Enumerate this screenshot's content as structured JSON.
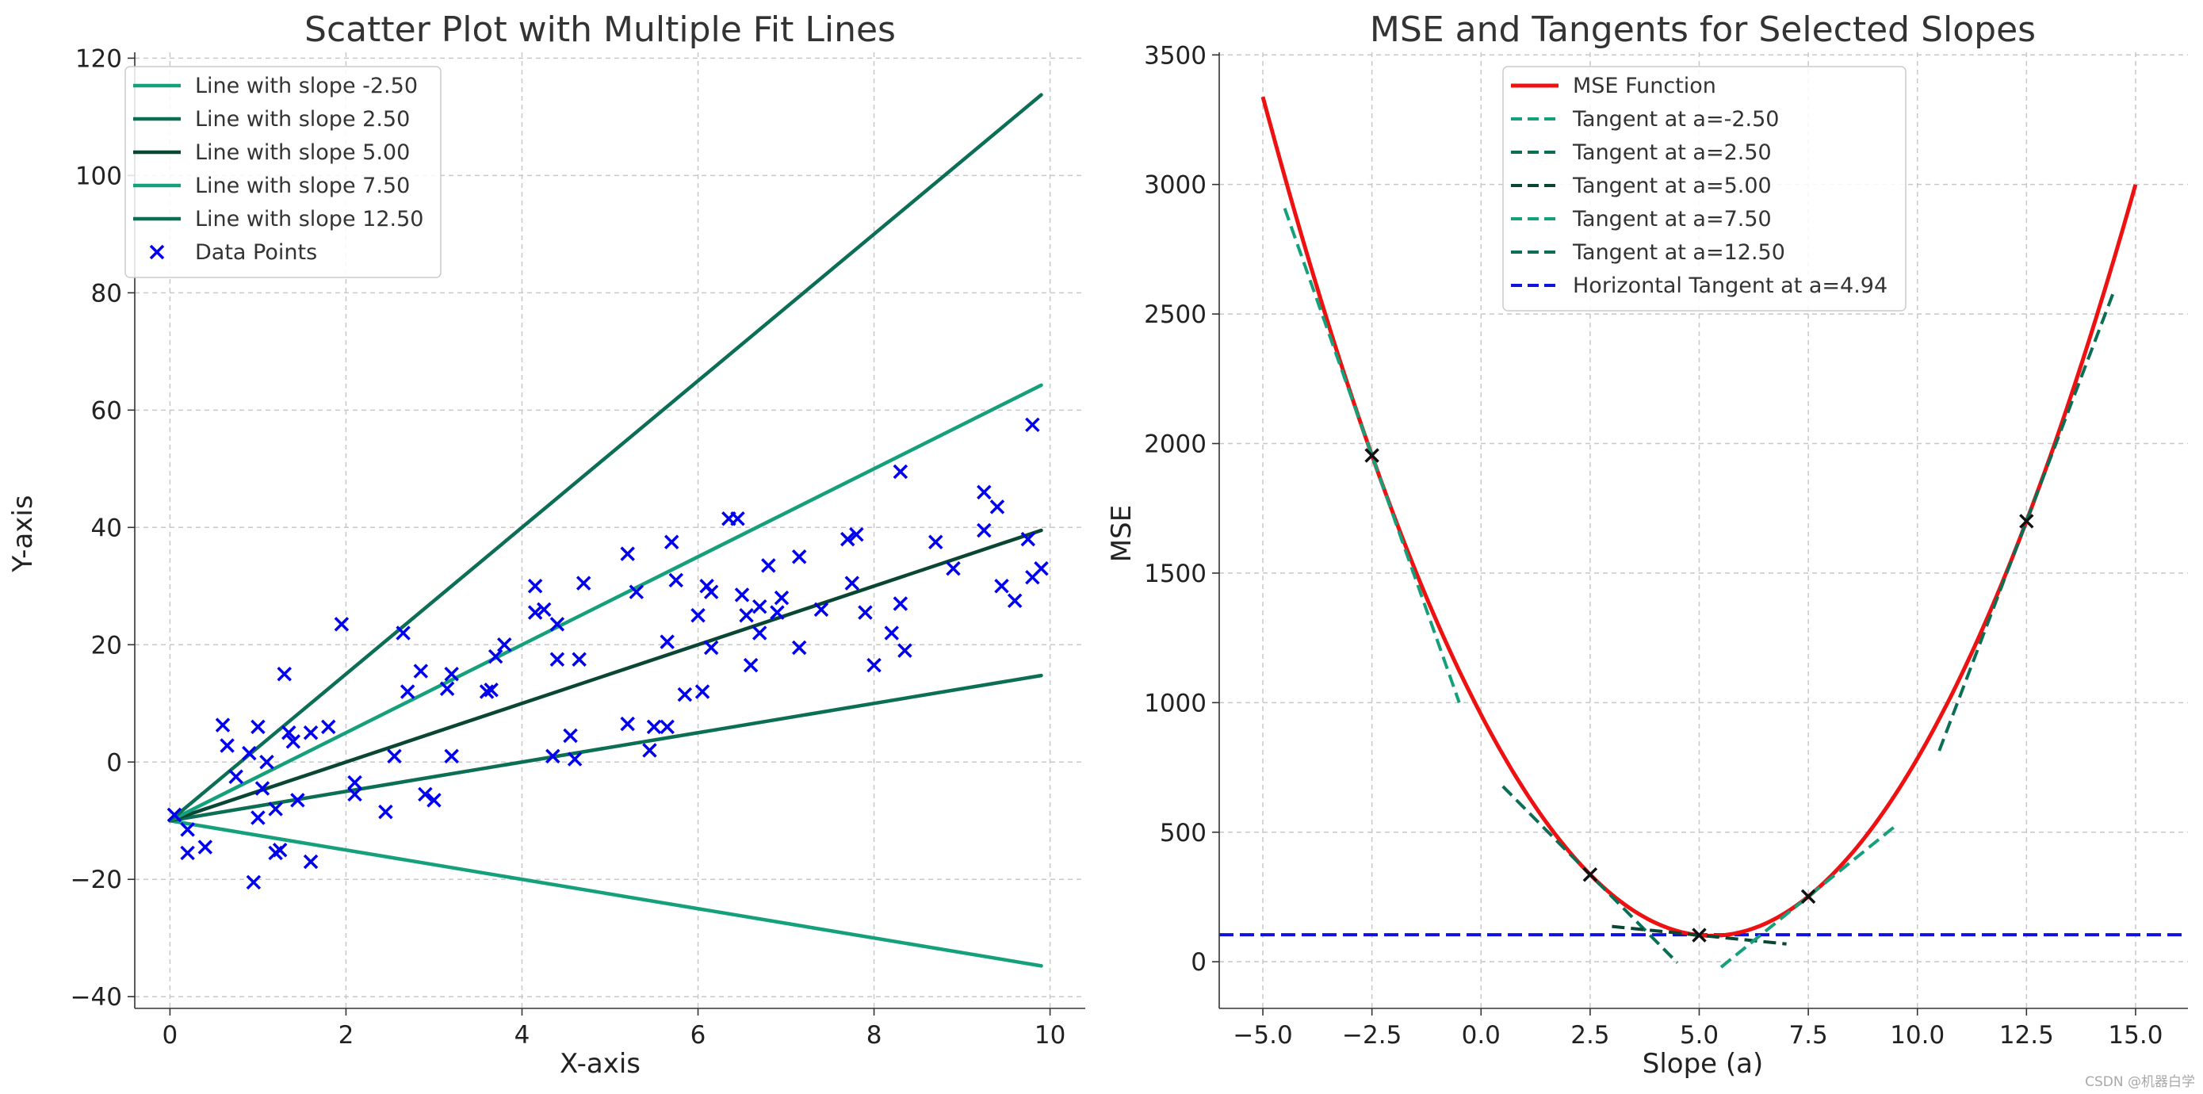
{
  "watermark": "CSDN @机器白学",
  "colors": {
    "teal": "#14a07a",
    "dark_teal": "#0b6e55",
    "darkest_teal": "#0a4634",
    "mse": "#ee1111",
    "horizontal": "#1111dd",
    "points": "#0000ee"
  },
  "chart_data": [
    {
      "type": "scatter",
      "title": "Scatter Plot with Multiple Fit Lines",
      "xlabel": "X-axis",
      "ylabel": "Y-axis",
      "xlim": [
        -0.4,
        10.4
      ],
      "ylim": [
        -42,
        121
      ],
      "xticks": [
        0,
        2,
        4,
        6,
        8,
        10
      ],
      "yticks": [
        -40,
        -20,
        0,
        20,
        40,
        60,
        80,
        100,
        120
      ],
      "grid": true,
      "legend_position": "top-left",
      "intercept": -10,
      "fit_lines": [
        {
          "name": "Line with slope -2.50",
          "slope": -2.5,
          "color": "#14a07a"
        },
        {
          "name": "Line with slope 2.50",
          "slope": 2.5,
          "color": "#0b6e55"
        },
        {
          "name": "Line with slope 5.00",
          "slope": 5.0,
          "color": "#0a4634"
        },
        {
          "name": "Line with slope 7.50",
          "slope": 7.5,
          "color": "#14a07a"
        },
        {
          "name": "Line with slope 12.50",
          "slope": 12.5,
          "color": "#0b6e55"
        }
      ],
      "points_name": "Data Points",
      "points": [
        [
          0.05,
          -9
        ],
        [
          0.2,
          -11.5
        ],
        [
          0.2,
          -15.5
        ],
        [
          0.4,
          -14.5
        ],
        [
          0.6,
          6.3
        ],
        [
          0.65,
          2.8
        ],
        [
          0.75,
          -2.5
        ],
        [
          0.9,
          1.5
        ],
        [
          0.95,
          -20.5
        ],
        [
          1.0,
          6
        ],
        [
          1.0,
          -9.5
        ],
        [
          1.05,
          -4.5
        ],
        [
          1.1,
          0
        ],
        [
          1.2,
          -8
        ],
        [
          1.2,
          -15.5
        ],
        [
          1.25,
          -15
        ],
        [
          1.3,
          15
        ],
        [
          1.35,
          5
        ],
        [
          1.4,
          3.5
        ],
        [
          1.45,
          -6.5
        ],
        [
          1.6,
          5
        ],
        [
          1.6,
          -17
        ],
        [
          1.8,
          6
        ],
        [
          1.95,
          23.5
        ],
        [
          2.1,
          -5.5
        ],
        [
          2.1,
          -3.5
        ],
        [
          2.45,
          -8.5
        ],
        [
          2.55,
          1
        ],
        [
          2.65,
          22
        ],
        [
          2.7,
          12
        ],
        [
          2.85,
          15.5
        ],
        [
          2.9,
          -5.5
        ],
        [
          3.0,
          -6.5
        ],
        [
          3.15,
          12.5
        ],
        [
          3.2,
          15
        ],
        [
          3.2,
          1
        ],
        [
          3.6,
          12
        ],
        [
          3.65,
          12.3
        ],
        [
          3.7,
          18
        ],
        [
          3.8,
          20
        ],
        [
          4.15,
          30
        ],
        [
          4.15,
          25.5
        ],
        [
          4.25,
          26
        ],
        [
          4.35,
          1
        ],
        [
          4.4,
          17.5
        ],
        [
          4.4,
          23.5
        ],
        [
          4.55,
          4.5
        ],
        [
          4.6,
          0.5
        ],
        [
          4.65,
          17.5
        ],
        [
          4.7,
          30.5
        ],
        [
          5.2,
          35.5
        ],
        [
          5.2,
          6.5
        ],
        [
          5.3,
          29
        ],
        [
          5.45,
          2
        ],
        [
          5.5,
          6
        ],
        [
          5.65,
          20.5
        ],
        [
          5.65,
          6
        ],
        [
          5.7,
          37.5
        ],
        [
          5.75,
          31
        ],
        [
          5.85,
          11.5
        ],
        [
          6.0,
          25
        ],
        [
          6.05,
          12
        ],
        [
          6.1,
          30
        ],
        [
          6.15,
          19.5
        ],
        [
          6.15,
          29
        ],
        [
          6.35,
          41.5
        ],
        [
          6.45,
          41.5
        ],
        [
          6.5,
          28.5
        ],
        [
          6.55,
          25
        ],
        [
          6.6,
          16.5
        ],
        [
          6.7,
          26.5
        ],
        [
          6.7,
          22
        ],
        [
          6.8,
          33.5
        ],
        [
          6.9,
          25.5
        ],
        [
          6.95,
          28
        ],
        [
          7.15,
          35
        ],
        [
          7.15,
          19.5
        ],
        [
          7.4,
          26
        ],
        [
          7.7,
          38
        ],
        [
          7.75,
          30.5
        ],
        [
          7.8,
          38.8
        ],
        [
          7.9,
          25.5
        ],
        [
          8.0,
          16.5
        ],
        [
          8.2,
          22
        ],
        [
          8.3,
          49.5
        ],
        [
          8.3,
          27
        ],
        [
          8.35,
          19
        ],
        [
          8.7,
          37.5
        ],
        [
          8.9,
          33
        ],
        [
          9.25,
          46
        ],
        [
          9.25,
          39.5
        ],
        [
          9.4,
          43.5
        ],
        [
          9.45,
          30
        ],
        [
          9.6,
          27.5
        ],
        [
          9.75,
          38
        ],
        [
          9.8,
          31.5
        ],
        [
          9.8,
          57.5
        ],
        [
          9.9,
          33
        ]
      ]
    },
    {
      "type": "line",
      "title": "MSE and Tangents for Selected Slopes",
      "xlabel": "Slope (a)",
      "ylabel": "MSE",
      "xlim": [
        -6,
        16.2
      ],
      "ylim": [
        -180,
        3510
      ],
      "xticks": [
        -5.0,
        -2.5,
        0.0,
        2.5,
        5.0,
        7.5,
        10.0,
        12.5,
        15.0
      ],
      "xtick_labels": [
        "−5.0",
        "−2.5",
        "0.0",
        "2.5",
        "5.0",
        "7.5",
        "10.0",
        "12.5",
        "15.0"
      ],
      "yticks": [
        0,
        500,
        1000,
        1500,
        2000,
        2500,
        3000,
        3500
      ],
      "grid": true,
      "legend_position": "top-center",
      "mse_curve": {
        "name": "MSE Function",
        "x_range": [
          -5,
          15
        ],
        "sampled_points": [
          [
            -5,
            3340
          ],
          [
            -2.5,
            1950
          ],
          [
            2.5,
            340
          ],
          [
            4.94,
            104
          ],
          [
            7.5,
            250
          ],
          [
            12.5,
            1700
          ],
          [
            15,
            3000
          ]
        ]
      },
      "tangents": [
        {
          "name": "Tangent at a=-2.50",
          "a": -2.5,
          "mse": 1950,
          "x_range": [
            -4.5,
            -0.5
          ],
          "color": "#14a07a"
        },
        {
          "name": "Tangent at a=2.50",
          "a": 2.5,
          "mse": 340,
          "x_range": [
            0.5,
            4.5
          ],
          "color": "#0b6e55"
        },
        {
          "name": "Tangent at a=5.00",
          "a": 5.0,
          "mse": 104,
          "x_range": [
            3.0,
            7.0
          ],
          "color": "#0a4634"
        },
        {
          "name": "Tangent at a=7.50",
          "a": 7.5,
          "mse": 250,
          "x_range": [
            5.5,
            9.5
          ],
          "color": "#14a07a"
        },
        {
          "name": "Tangent at a=12.50",
          "a": 12.5,
          "mse": 1700,
          "x_range": [
            10.5,
            14.5
          ],
          "color": "#0b6e55"
        }
      ],
      "horizontal": {
        "name": "Horizontal Tangent at a=4.94",
        "a": 4.94,
        "mse": 104,
        "color": "#1111dd"
      },
      "markers": [
        [
          -2.5,
          1950
        ],
        [
          2.5,
          340
        ],
        [
          5.0,
          104
        ],
        [
          7.5,
          250
        ],
        [
          12.5,
          1700
        ]
      ]
    }
  ]
}
